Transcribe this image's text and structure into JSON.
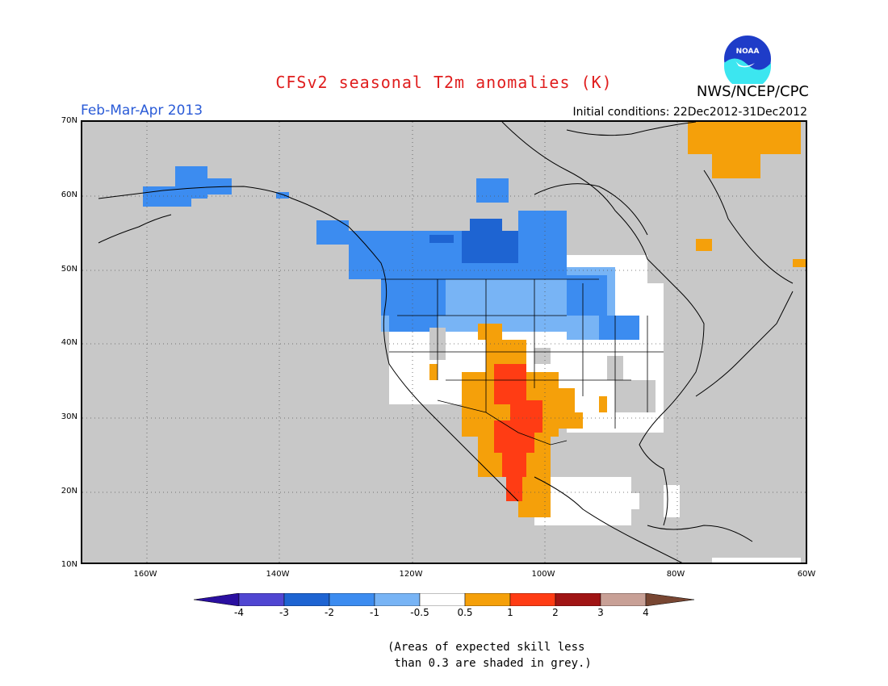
{
  "header": {
    "title": "CFSv2 seasonal T2m anomalies (K)",
    "period": "Feb-Mar-Apr 2013",
    "initial_conditions": "Initial conditions: 22Dec2012-31Dec2012",
    "agency": "NWS/NCEP/CPC",
    "logo_text": "NOAA"
  },
  "map": {
    "background_color": "#c8c8c8",
    "lat_labels": [
      "70N",
      "60N",
      "50N",
      "40N",
      "30N",
      "20N",
      "10N"
    ],
    "lon_labels": [
      "160W",
      "140W",
      "120W",
      "100W",
      "80W",
      "60W"
    ],
    "grid": "dotted"
  },
  "colorbar": {
    "labels": [
      "-4",
      "-3",
      "-2",
      "-1",
      "-0.5",
      "0.5",
      "1",
      "2",
      "3",
      "4"
    ],
    "colors": [
      "#2a0fa0",
      "#5046d2",
      "#1e64d2",
      "#3c8cf0",
      "#78b4f5",
      "#ffffff",
      "#f5a00a",
      "#ff3c14",
      "#a01414",
      "#c8a096",
      "#784632"
    ]
  },
  "footnote": {
    "line1": "(Areas of expected skill less",
    "line2": " than 0.3 are shaded in grey.)"
  }
}
